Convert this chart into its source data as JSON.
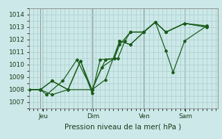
{
  "xlabel": "Pression niveau de la mer( hPa )",
  "bg_color": "#cce8e8",
  "grid_color": "#aacece",
  "line_color": "#1a5c1a",
  "ylim": [
    1006.5,
    1014.5
  ],
  "yticks": [
    1007,
    1008,
    1009,
    1010,
    1011,
    1012,
    1013,
    1014
  ],
  "xlim": [
    0.0,
    1.06
  ],
  "day_positions": [
    0.08,
    0.36,
    0.65,
    0.88
  ],
  "day_labels": [
    "Jeu",
    "Dim",
    "Ven",
    "Sam"
  ],
  "vline_positions": [
    0.065,
    0.355,
    0.645,
    0.875
  ],
  "series": [
    [
      0.0,
      1008.0,
      0.065,
      1008.0,
      0.13,
      1007.6,
      0.22,
      1008.0,
      0.355,
      1008.0,
      0.43,
      1008.8,
      0.51,
      1011.9,
      0.57,
      1011.6,
      0.645,
      1012.6,
      0.71,
      1013.4,
      0.77,
      1012.6,
      0.875,
      1013.3,
      1.0,
      1013.1
    ],
    [
      0.0,
      1008.0,
      0.065,
      1008.0,
      0.13,
      1008.7,
      0.22,
      1008.0,
      0.29,
      1010.3,
      0.355,
      1007.7,
      0.4,
      1010.4,
      0.48,
      1010.5,
      0.51,
      1011.9,
      0.57,
      1011.6,
      0.645,
      1012.6,
      0.71,
      1013.4,
      0.77,
      1011.1,
      0.81,
      1009.4,
      0.875,
      1011.9,
      1.0,
      1013.1
    ],
    [
      0.0,
      1008.0,
      0.065,
      1008.0,
      0.1,
      1007.6,
      0.19,
      1008.7,
      0.27,
      1010.4,
      0.355,
      1008.0,
      0.41,
      1009.8,
      0.48,
      1010.5,
      0.51,
      1011.6,
      0.57,
      1012.6,
      0.645,
      1012.6,
      0.71,
      1013.4,
      0.77,
      1012.6,
      0.875,
      1013.3,
      1.0,
      1013.0
    ],
    [
      0.0,
      1008.0,
      0.065,
      1008.0,
      0.13,
      1008.7,
      0.22,
      1008.0,
      0.29,
      1010.3,
      0.355,
      1008.0,
      0.43,
      1010.4,
      0.5,
      1010.5,
      0.54,
      1011.9,
      0.57,
      1012.6,
      0.645,
      1012.6,
      0.71,
      1013.4,
      0.77,
      1012.6,
      0.875,
      1013.3,
      1.0,
      1013.0
    ]
  ]
}
